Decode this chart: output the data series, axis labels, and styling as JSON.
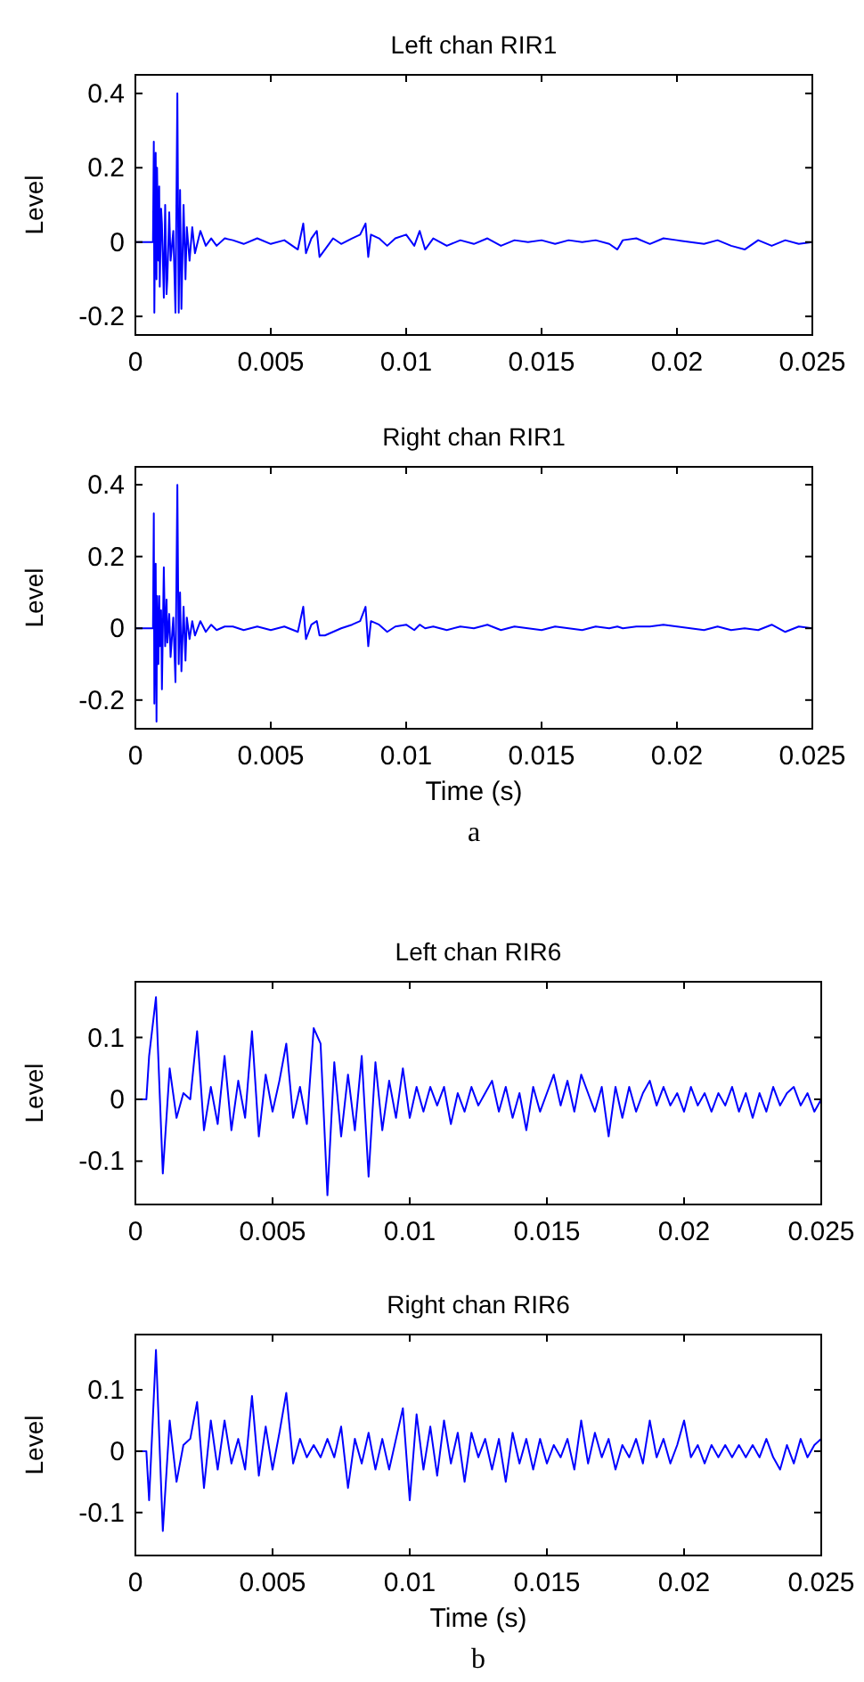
{
  "chart_data": [
    {
      "type": "line",
      "title": "Left chan RIR1",
      "ylabel": "Level",
      "xlim": [
        0,
        0.025
      ],
      "ylim": [
        -0.25,
        0.45
      ],
      "xticks": [
        0,
        0.005,
        0.01,
        0.015,
        0.02,
        0.025
      ],
      "yticks": [
        -0.2,
        0,
        0.2,
        0.4
      ],
      "x": [
        0,
        0.00065,
        0.00068,
        0.0007,
        0.00075,
        0.00078,
        0.0008,
        0.00085,
        0.00088,
        0.0009,
        0.00095,
        0.00098,
        0.00105,
        0.0011,
        0.00115,
        0.00118,
        0.00125,
        0.0013,
        0.0014,
        0.00148,
        0.00155,
        0.0016,
        0.00165,
        0.0017,
        0.00178,
        0.00185,
        0.0019,
        0.002,
        0.0021,
        0.0022,
        0.0024,
        0.0026,
        0.0028,
        0.003,
        0.0033,
        0.0036,
        0.004,
        0.0045,
        0.005,
        0.0055,
        0.006,
        0.0062,
        0.0063,
        0.0065,
        0.0067,
        0.0068,
        0.007,
        0.0073,
        0.0076,
        0.008,
        0.0083,
        0.0085,
        0.0086,
        0.0087,
        0.009,
        0.0093,
        0.0096,
        0.01,
        0.0103,
        0.0105,
        0.0107,
        0.011,
        0.0115,
        0.012,
        0.0125,
        0.013,
        0.0135,
        0.014,
        0.0145,
        0.015,
        0.0155,
        0.016,
        0.0165,
        0.017,
        0.0175,
        0.0178,
        0.018,
        0.0185,
        0.019,
        0.0195,
        0.02,
        0.0205,
        0.021,
        0.0215,
        0.022,
        0.0225,
        0.023,
        0.0235,
        0.024,
        0.0245,
        0.025
      ],
      "series": [
        {
          "color": "#0000ff",
          "values": [
            0,
            0,
            0.27,
            -0.19,
            0.24,
            -0.1,
            0.2,
            -0.05,
            0.15,
            -0.12,
            0.09,
            0.05,
            -0.15,
            0.1,
            -0.14,
            -0.1,
            0.08,
            -0.05,
            0.03,
            -0.19,
            0.4,
            -0.19,
            0.14,
            -0.18,
            0.1,
            -0.1,
            0.04,
            -0.05,
            0.04,
            -0.03,
            0.03,
            -0.01,
            0.01,
            -0.01,
            0.01,
            0.005,
            -0.005,
            0.01,
            -0.005,
            0.005,
            -0.02,
            0.05,
            -0.03,
            0.01,
            0.03,
            -0.04,
            -0.02,
            0.01,
            -0.005,
            0.01,
            0.02,
            0.05,
            -0.04,
            0.02,
            0.01,
            -0.01,
            0.01,
            0.02,
            -0.01,
            0.03,
            -0.02,
            0.01,
            -0.01,
            0.005,
            -0.005,
            0.01,
            -0.01,
            0.005,
            0,
            0.005,
            -0.005,
            0.005,
            0,
            0.005,
            -0.005,
            -0.02,
            0.005,
            0.01,
            -0.005,
            0.01,
            0.005,
            0,
            -0.005,
            0.005,
            -0.01,
            -0.02,
            0.005,
            -0.01,
            0.005,
            -0.005,
            0
          ]
        }
      ]
    },
    {
      "type": "line",
      "title": "Right chan RIR1",
      "xlabel": "Time (s)",
      "ylabel": "Level",
      "annotations": [
        "a"
      ],
      "xlim": [
        0,
        0.025
      ],
      "ylim": [
        -0.28,
        0.45
      ],
      "xticks": [
        0,
        0.005,
        0.01,
        0.015,
        0.02,
        0.025
      ],
      "yticks": [
        -0.2,
        0,
        0.2,
        0.4
      ],
      "x": [
        0,
        0.00065,
        0.00068,
        0.0007,
        0.00075,
        0.00078,
        0.0008,
        0.00085,
        0.00088,
        0.0009,
        0.00095,
        0.00098,
        0.00105,
        0.0011,
        0.00115,
        0.00118,
        0.00125,
        0.0013,
        0.0014,
        0.00148,
        0.00155,
        0.0016,
        0.00165,
        0.0017,
        0.00178,
        0.00185,
        0.0019,
        0.002,
        0.0021,
        0.0022,
        0.0024,
        0.0026,
        0.0028,
        0.003,
        0.0033,
        0.0036,
        0.004,
        0.0045,
        0.005,
        0.0055,
        0.006,
        0.0062,
        0.0063,
        0.0065,
        0.0067,
        0.0068,
        0.007,
        0.0073,
        0.0076,
        0.008,
        0.0083,
        0.0085,
        0.0086,
        0.0087,
        0.009,
        0.0093,
        0.0096,
        0.01,
        0.0103,
        0.0105,
        0.0107,
        0.011,
        0.0115,
        0.012,
        0.0125,
        0.013,
        0.0135,
        0.014,
        0.0145,
        0.015,
        0.0155,
        0.016,
        0.0165,
        0.017,
        0.0175,
        0.0178,
        0.018,
        0.0185,
        0.019,
        0.0195,
        0.02,
        0.0205,
        0.021,
        0.0215,
        0.022,
        0.0225,
        0.023,
        0.0235,
        0.024,
        0.0245,
        0.025
      ],
      "series": [
        {
          "color": "#0000ff",
          "values": [
            0,
            0,
            0.32,
            -0.21,
            0.18,
            -0.26,
            0.09,
            -0.1,
            0.09,
            -0.05,
            0.05,
            -0.17,
            0.17,
            -0.05,
            0.08,
            -0.04,
            0.04,
            -0.08,
            0.03,
            -0.15,
            0.4,
            -0.1,
            0.1,
            -0.12,
            0.06,
            -0.09,
            0.03,
            -0.03,
            0.02,
            -0.02,
            0.02,
            -0.01,
            0.01,
            -0.005,
            0.005,
            0.005,
            -0.005,
            0.005,
            -0.005,
            0.005,
            -0.01,
            0.06,
            -0.03,
            0.01,
            0.02,
            -0.02,
            -0.02,
            -0.01,
            0,
            0.01,
            0.02,
            0.06,
            -0.05,
            0.02,
            0.01,
            -0.01,
            0.005,
            0.01,
            -0.005,
            0.01,
            0,
            0.005,
            -0.005,
            0.005,
            0,
            0.01,
            -0.005,
            0.005,
            0,
            -0.005,
            0.005,
            0,
            -0.005,
            0.005,
            0,
            0.005,
            0,
            0.005,
            0.005,
            0.01,
            0.005,
            0,
            -0.005,
            0.005,
            -0.005,
            0,
            -0.005,
            0.01,
            -0.01,
            0.005,
            0
          ]
        }
      ]
    },
    {
      "type": "line",
      "title": "Left chan RIR6",
      "ylabel": "Level",
      "xlim": [
        0,
        0.025
      ],
      "ylim": [
        -0.17,
        0.19
      ],
      "xticks": [
        0,
        0.005,
        0.01,
        0.015,
        0.02,
        0.025
      ],
      "yticks": [
        -0.1,
        0,
        0.1
      ],
      "x": [
        0,
        0.0004,
        0.0005,
        0.00075,
        0.001,
        0.00125,
        0.0015,
        0.00175,
        0.002,
        0.00225,
        0.0025,
        0.00275,
        0.003,
        0.00325,
        0.0035,
        0.00375,
        0.004,
        0.00425,
        0.0045,
        0.00475,
        0.005,
        0.00525,
        0.0055,
        0.00575,
        0.006,
        0.00625,
        0.0065,
        0.00675,
        0.007,
        0.00725,
        0.0075,
        0.00775,
        0.008,
        0.00825,
        0.0085,
        0.00875,
        0.009,
        0.00925,
        0.0095,
        0.00975,
        0.01,
        0.01025,
        0.0105,
        0.01075,
        0.011,
        0.01125,
        0.0115,
        0.01175,
        0.012,
        0.01225,
        0.0125,
        0.01275,
        0.013,
        0.01325,
        0.0135,
        0.01375,
        0.014,
        0.01425,
        0.0145,
        0.01475,
        0.015,
        0.01525,
        0.0155,
        0.01575,
        0.016,
        0.01625,
        0.0165,
        0.01675,
        0.017,
        0.01725,
        0.0175,
        0.01775,
        0.018,
        0.01825,
        0.0185,
        0.01875,
        0.019,
        0.01925,
        0.0195,
        0.01975,
        0.02,
        0.02025,
        0.0205,
        0.02075,
        0.021,
        0.02125,
        0.0215,
        0.02175,
        0.022,
        0.02225,
        0.0225,
        0.02275,
        0.023,
        0.02325,
        0.0235,
        0.02375,
        0.024,
        0.02425,
        0.0245,
        0.02475,
        0.025
      ],
      "series": [
        {
          "color": "#0000ff",
          "values": [
            0,
            0,
            0.07,
            0.165,
            -0.12,
            0.05,
            -0.03,
            0.01,
            0,
            0.11,
            -0.05,
            0.02,
            -0.04,
            0.07,
            -0.05,
            0.03,
            -0.03,
            0.11,
            -0.06,
            0.04,
            -0.02,
            0.03,
            0.09,
            -0.03,
            0.02,
            -0.04,
            0.115,
            0.09,
            -0.155,
            0.06,
            -0.06,
            0.04,
            -0.05,
            0.07,
            -0.125,
            0.06,
            -0.05,
            0.03,
            -0.03,
            0.05,
            -0.03,
            0.02,
            -0.02,
            0.02,
            -0.01,
            0.02,
            -0.04,
            0.01,
            -0.02,
            0.02,
            -0.01,
            0.01,
            0.03,
            -0.02,
            0.02,
            -0.03,
            0.01,
            -0.05,
            0.02,
            -0.02,
            0.01,
            0.04,
            -0.01,
            0.03,
            -0.02,
            0.04,
            0.01,
            -0.02,
            0.02,
            -0.06,
            0.02,
            -0.03,
            0.02,
            -0.02,
            0.01,
            0.03,
            -0.01,
            0.02,
            -0.01,
            0.01,
            -0.02,
            0.02,
            -0.01,
            0.01,
            -0.02,
            0.01,
            -0.01,
            0.02,
            -0.02,
            0.01,
            -0.03,
            0.01,
            -0.02,
            0.02,
            -0.01,
            0.01,
            0.02,
            -0.01,
            0.01,
            -0.02,
            0
          ]
        }
      ]
    },
    {
      "type": "line",
      "title": "Right chan RIR6",
      "xlabel": "Time (s)",
      "ylabel": "Level",
      "annotations": [
        "b"
      ],
      "xlim": [
        0,
        0.025
      ],
      "ylim": [
        -0.17,
        0.19
      ],
      "xticks": [
        0,
        0.005,
        0.01,
        0.015,
        0.02,
        0.025
      ],
      "yticks": [
        -0.1,
        0,
        0.1
      ],
      "x": [
        0,
        0.0004,
        0.0005,
        0.00075,
        0.001,
        0.00125,
        0.0015,
        0.00175,
        0.002,
        0.00225,
        0.0025,
        0.00275,
        0.003,
        0.00325,
        0.0035,
        0.00375,
        0.004,
        0.00425,
        0.0045,
        0.00475,
        0.005,
        0.00525,
        0.0055,
        0.00575,
        0.006,
        0.00625,
        0.0065,
        0.00675,
        0.007,
        0.00725,
        0.0075,
        0.00775,
        0.008,
        0.00825,
        0.0085,
        0.00875,
        0.009,
        0.00925,
        0.0095,
        0.00975,
        0.01,
        0.01025,
        0.0105,
        0.01075,
        0.011,
        0.01125,
        0.0115,
        0.01175,
        0.012,
        0.01225,
        0.0125,
        0.01275,
        0.013,
        0.01325,
        0.0135,
        0.01375,
        0.014,
        0.01425,
        0.0145,
        0.01475,
        0.015,
        0.01525,
        0.0155,
        0.01575,
        0.016,
        0.01625,
        0.0165,
        0.01675,
        0.017,
        0.01725,
        0.0175,
        0.01775,
        0.018,
        0.01825,
        0.0185,
        0.01875,
        0.019,
        0.01925,
        0.0195,
        0.01975,
        0.02,
        0.02025,
        0.0205,
        0.02075,
        0.021,
        0.02125,
        0.0215,
        0.02175,
        0.022,
        0.02225,
        0.0225,
        0.02275,
        0.023,
        0.02325,
        0.0235,
        0.02375,
        0.024,
        0.02425,
        0.0245,
        0.02475,
        0.025
      ],
      "series": [
        {
          "color": "#0000ff",
          "values": [
            0,
            0,
            -0.08,
            0.165,
            -0.13,
            0.05,
            -0.05,
            0.01,
            0.02,
            0.08,
            -0.06,
            0.05,
            -0.03,
            0.05,
            -0.02,
            0.02,
            -0.03,
            0.09,
            -0.04,
            0.04,
            -0.03,
            0.03,
            0.095,
            -0.02,
            0.02,
            -0.01,
            0.01,
            -0.01,
            0.02,
            -0.01,
            0.04,
            -0.06,
            0.02,
            -0.02,
            0.03,
            -0.03,
            0.02,
            -0.03,
            0.02,
            0.07,
            -0.08,
            0.06,
            -0.03,
            0.04,
            -0.04,
            0.05,
            -0.02,
            0.03,
            -0.05,
            0.03,
            -0.01,
            0.02,
            -0.03,
            0.02,
            -0.05,
            0.03,
            -0.02,
            0.02,
            -0.03,
            0.02,
            -0.02,
            0.01,
            -0.01,
            0.02,
            -0.03,
            0.05,
            -0.02,
            0.03,
            -0.01,
            0.02,
            -0.03,
            0.01,
            -0.01,
            0.02,
            -0.02,
            0.05,
            -0.01,
            0.02,
            -0.02,
            0.01,
            0.05,
            -0.01,
            0.01,
            -0.02,
            0.01,
            -0.01,
            0.01,
            -0.01,
            0.01,
            -0.01,
            0.01,
            -0.01,
            0.02,
            -0.01,
            -0.03,
            0.01,
            -0.02,
            0.02,
            -0.01,
            0.01,
            0.02
          ]
        }
      ]
    }
  ]
}
